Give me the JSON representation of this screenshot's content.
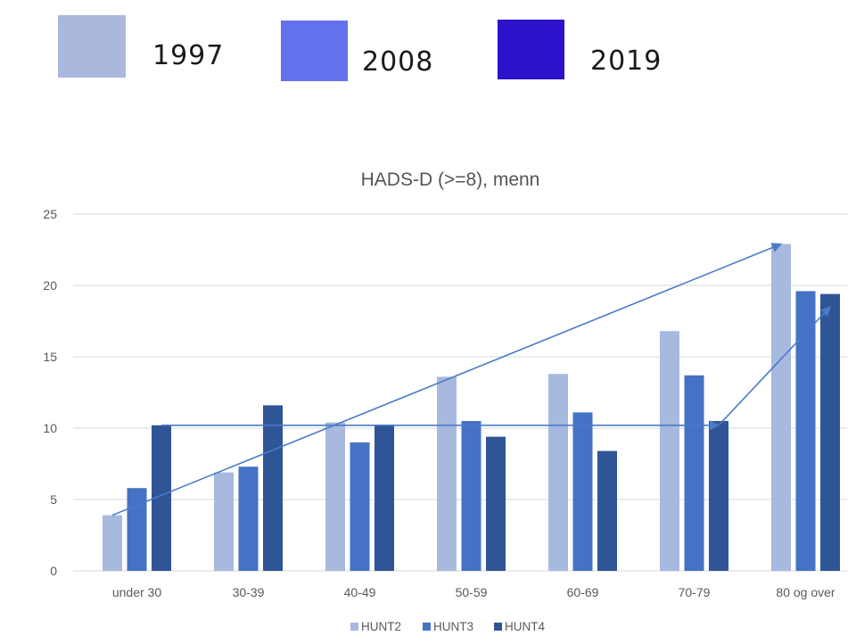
{
  "year_legend": {
    "items": [
      {
        "label": "1997",
        "color": "#aab8de"
      },
      {
        "label": "2008",
        "color": "#6471ec"
      },
      {
        "label": "2019",
        "color": "#2d12cc"
      }
    ]
  },
  "chart_data": {
    "type": "bar",
    "title": "HADS-D (>=8), menn",
    "xlabel": "",
    "ylabel": "",
    "ylim": [
      0,
      25
    ],
    "yticks": [
      "0",
      "5",
      "10",
      "15",
      "20",
      "25"
    ],
    "grid": true,
    "legend_position": "bottom",
    "categories": [
      "under 30",
      "30-39",
      "40-49",
      "50-59",
      "60-69",
      "70-79",
      "80 og over"
    ],
    "series": [
      {
        "name": "HUNT2",
        "color": "#a7b9df",
        "values": [
          3.9,
          6.9,
          10.4,
          13.6,
          13.8,
          16.8,
          22.9
        ]
      },
      {
        "name": "HUNT3",
        "color": "#4472c4",
        "values": [
          5.8,
          7.3,
          9.0,
          10.5,
          11.1,
          13.7,
          19.6
        ]
      },
      {
        "name": "HUNT4",
        "color": "#2f5597",
        "values": [
          10.2,
          11.6,
          10.2,
          9.4,
          8.4,
          10.5,
          19.4
        ]
      }
    ],
    "annotations": {
      "arrow_color": "#4a7bc8",
      "arrows": [
        {
          "from": {
            "category": "under 30",
            "series": "HUNT2",
            "y": 3.9
          },
          "to": {
            "category": "80 og over",
            "series": "HUNT2",
            "y": 22.9
          }
        },
        {
          "from": {
            "category": "under 30",
            "series": "HUNT4",
            "y": 10.2
          },
          "to": {
            "category": "70-79",
            "series": "HUNT4",
            "y": 10.2
          }
        },
        {
          "from": {
            "category": "70-79",
            "series": "HUNT4",
            "y": 10.2
          },
          "to": {
            "category": "80 og over",
            "series": "HUNT4",
            "y": 18.5
          }
        }
      ]
    }
  }
}
